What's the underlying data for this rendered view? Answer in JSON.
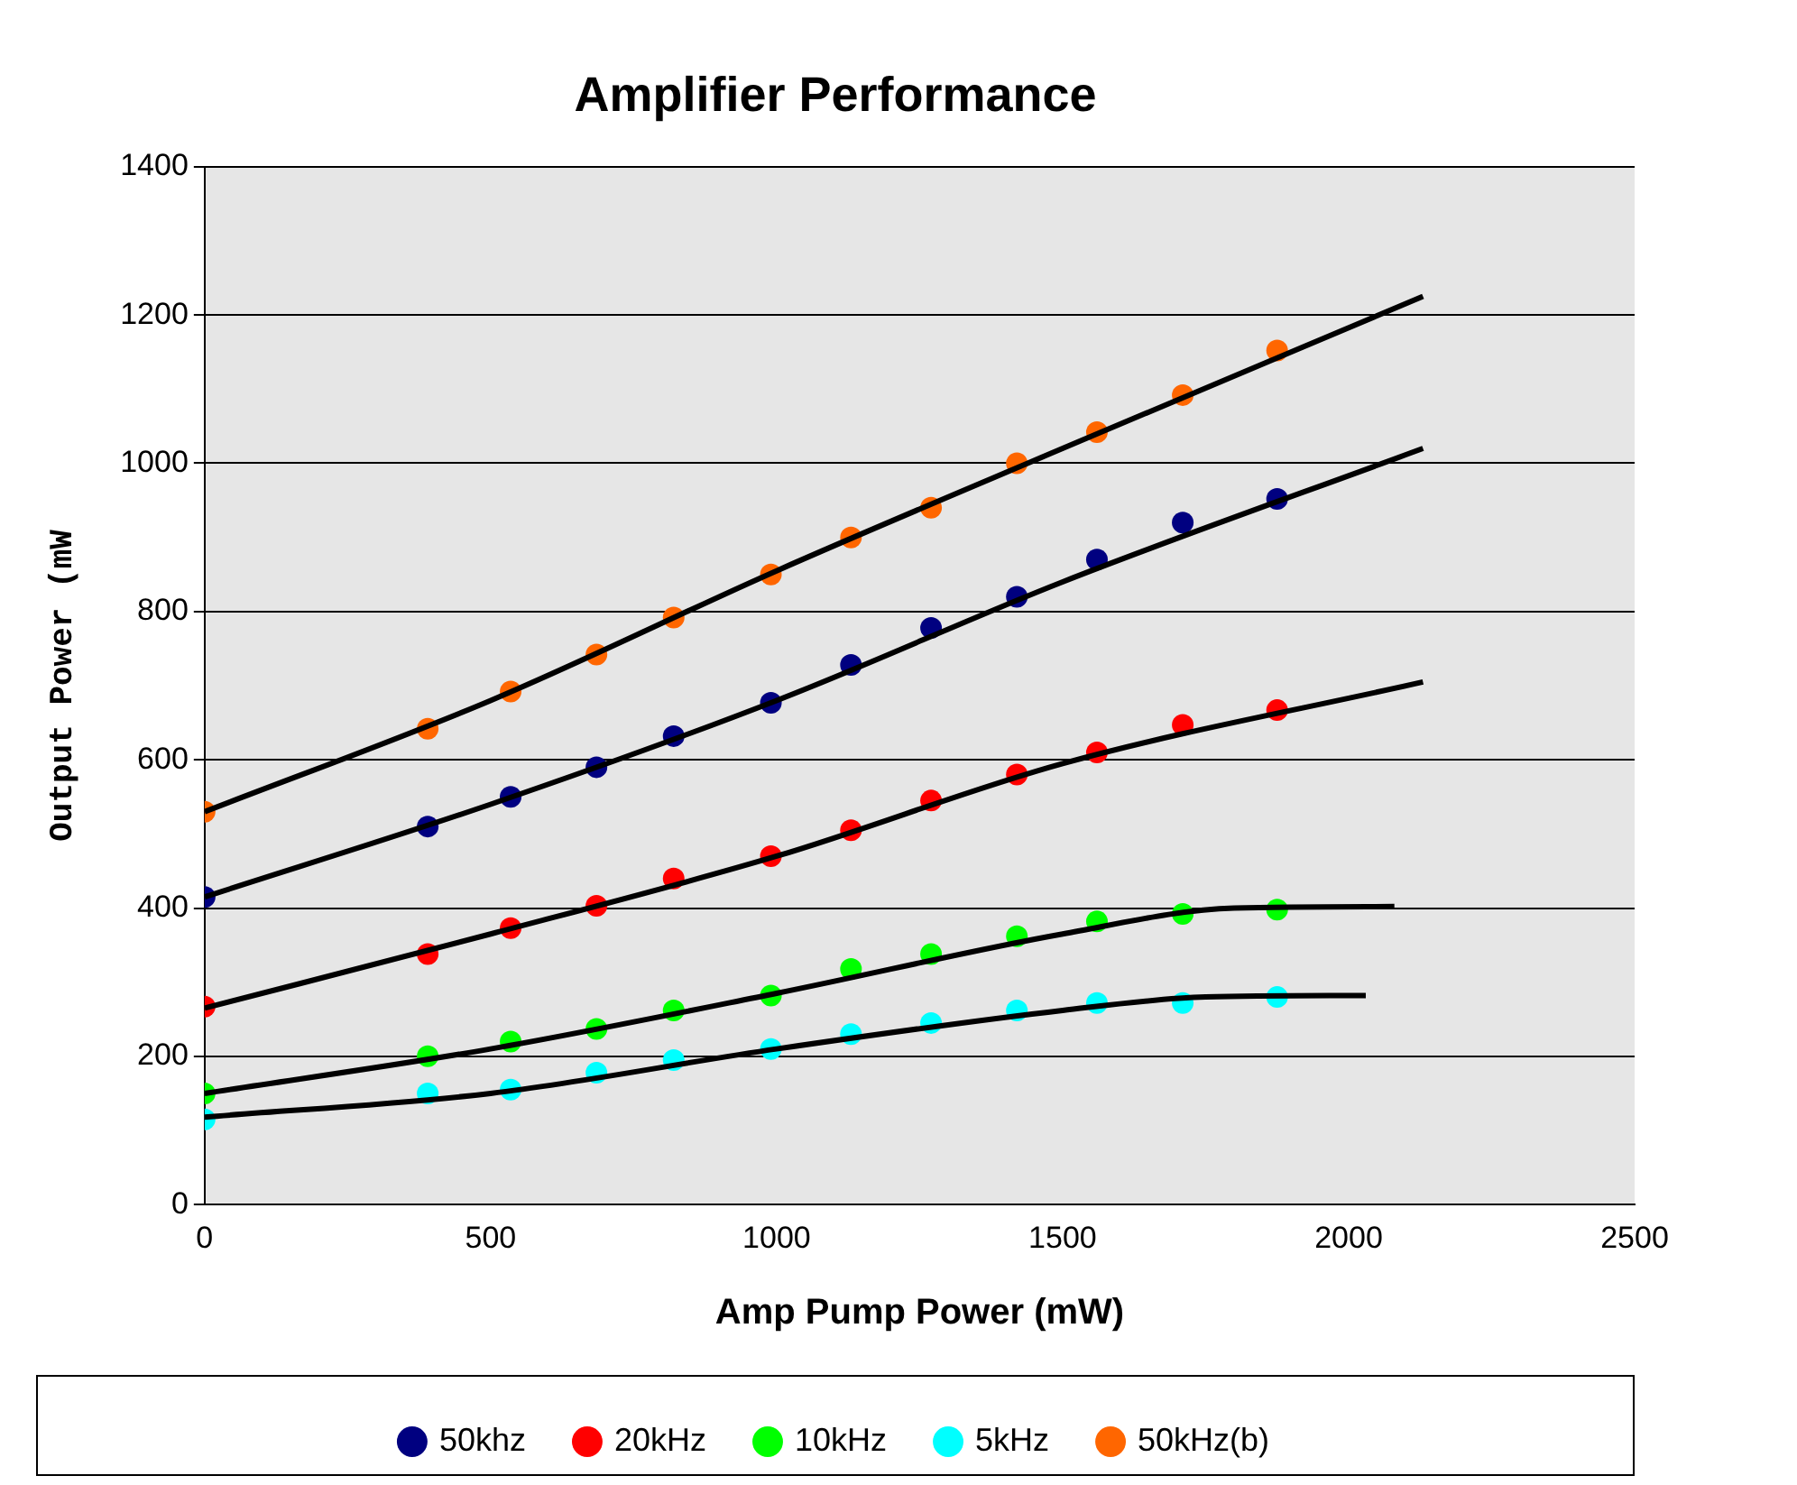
{
  "chart_data": {
    "type": "scatter",
    "title": "Amplifier Performance",
    "xlabel": "Amp Pump Power (mW)",
    "ylabel": "Output Power (mW",
    "xlim": [
      0,
      2500
    ],
    "xticks": [
      0,
      500,
      1000,
      1500,
      2000,
      2500
    ],
    "ylim": [
      0,
      1400
    ],
    "yticks": [
      0,
      200,
      400,
      600,
      800,
      1000,
      1200,
      1400
    ],
    "grid": "y",
    "legend": "bottom",
    "marker": "circle",
    "x": [
      0,
      390,
      535,
      685,
      820,
      990,
      1130,
      1270,
      1420,
      1560,
      1710,
      1875
    ],
    "series": [
      {
        "name": "50khz",
        "color": "#000080",
        "values": [
          415,
          510,
          550,
          590,
          632,
          677,
          728,
          778,
          820,
          870,
          920,
          952
        ]
      },
      {
        "name": "20kHz",
        "color": "#ff0000",
        "values": [
          267,
          338,
          373,
          403,
          440,
          470,
          505,
          545,
          580,
          610,
          647,
          667
        ]
      },
      {
        "name": "10kHz",
        "color": "#00ff00",
        "values": [
          150,
          200,
          220,
          237,
          262,
          282,
          318,
          338,
          362,
          382,
          392,
          398
        ]
      },
      {
        "name": "5kHz",
        "color": "#00ffff",
        "values": [
          115,
          150,
          155,
          178,
          195,
          210,
          230,
          245,
          262,
          272,
          272,
          280
        ]
      },
      {
        "name": "50kHz(b)",
        "color": "#ff6600",
        "values": [
          530,
          642,
          692,
          742,
          792,
          850,
          900,
          940,
          1000,
          1042,
          1092,
          1152
        ]
      },
      {
        "type": "line",
        "marker": "none",
        "color": "#000000",
        "x": [
          0,
          500,
          1000,
          1500,
          2130
        ],
        "values": [
          415,
          540,
          680,
          840,
          1020
        ]
      },
      {
        "type": "line",
        "marker": "none",
        "color": "#000000",
        "x": [
          0,
          500,
          1000,
          1500,
          2130
        ],
        "values": [
          265,
          365,
          470,
          595,
          705
        ]
      },
      {
        "type": "line",
        "marker": "none",
        "color": "#000000",
        "x": [
          0,
          500,
          1000,
          1500,
          1800,
          2080
        ],
        "values": [
          150,
          210,
          285,
          365,
          400,
          402
        ]
      },
      {
        "type": "line",
        "marker": "none",
        "color": "#000000",
        "x": [
          0,
          500,
          1000,
          1500,
          1750,
          2030
        ],
        "values": [
          118,
          150,
          210,
          262,
          280,
          282
        ]
      },
      {
        "type": "line",
        "marker": "none",
        "color": "#000000",
        "x": [
          0,
          500,
          1000,
          1500,
          2130
        ],
        "values": [
          530,
          680,
          855,
          1020,
          1225
        ]
      }
    ]
  }
}
